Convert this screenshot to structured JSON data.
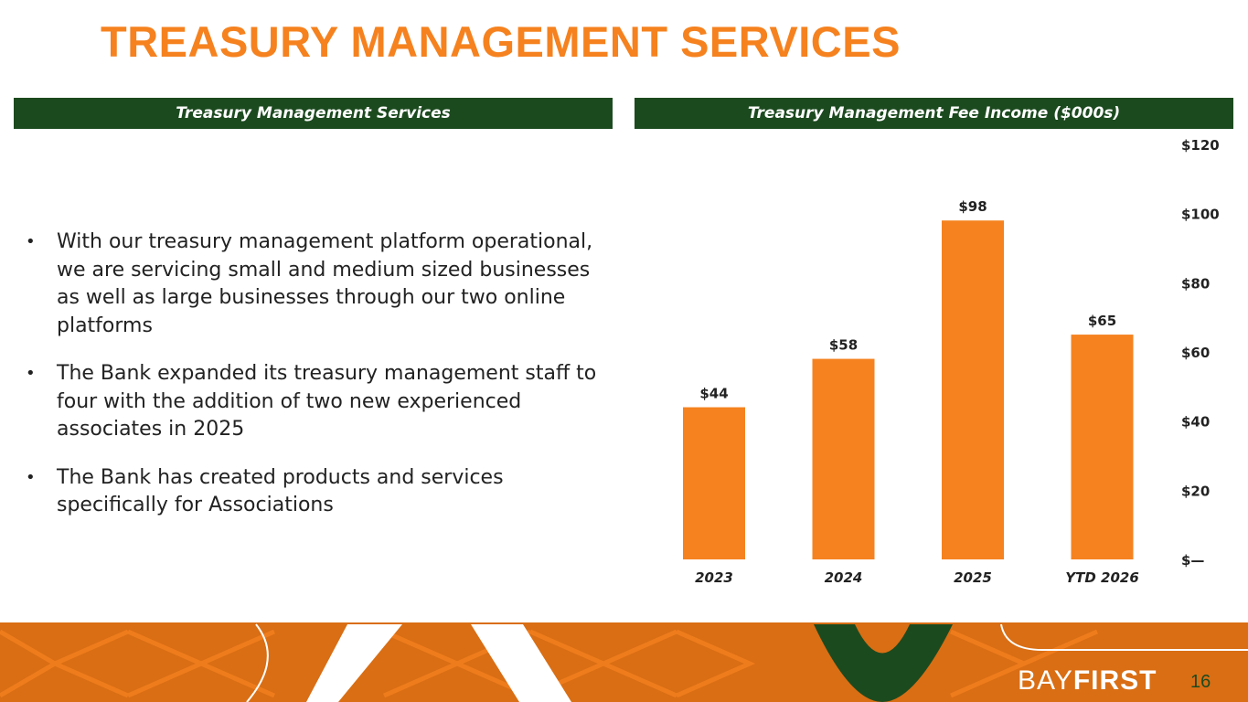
{
  "slide": {
    "title": "TREASURY MANAGEMENT SERVICES",
    "page_number": "16",
    "logo": {
      "part1": "BAY",
      "part2": "FIRST"
    }
  },
  "left_panel": {
    "header": "Treasury Management Services",
    "bullets": [
      "With our treasury management platform operational, we are servicing small and medium sized businesses as well as large businesses through our two online platforms",
      "The Bank expanded its treasury management staff to four with the addition of two new experienced associates in 2025",
      "The Bank has created products and services specifically for Associations"
    ]
  },
  "right_panel": {
    "header": "Treasury Management Fee Income ($000s)"
  },
  "colors": {
    "accent": "#F5821F",
    "dark_green": "#1C4A1F",
    "bar": "#F5821F",
    "footer": "#D96E14"
  },
  "chart_data": {
    "type": "bar",
    "title": "Treasury Management Fee Income ($000s)",
    "categories": [
      "2023",
      "2024",
      "2025",
      "YTD 2026"
    ],
    "values": [
      44,
      58,
      98,
      65
    ],
    "data_labels": [
      "$44",
      "$58",
      "$98",
      "$65"
    ],
    "ylim": [
      0,
      120
    ],
    "yticks": [
      0,
      20,
      40,
      60,
      80,
      100,
      120
    ],
    "ytick_labels": [
      "$—",
      "$20",
      "$40",
      "$60",
      "$80",
      "$100",
      "$120"
    ],
    "y_axis_side": "right",
    "grid": false,
    "legend": "none"
  }
}
